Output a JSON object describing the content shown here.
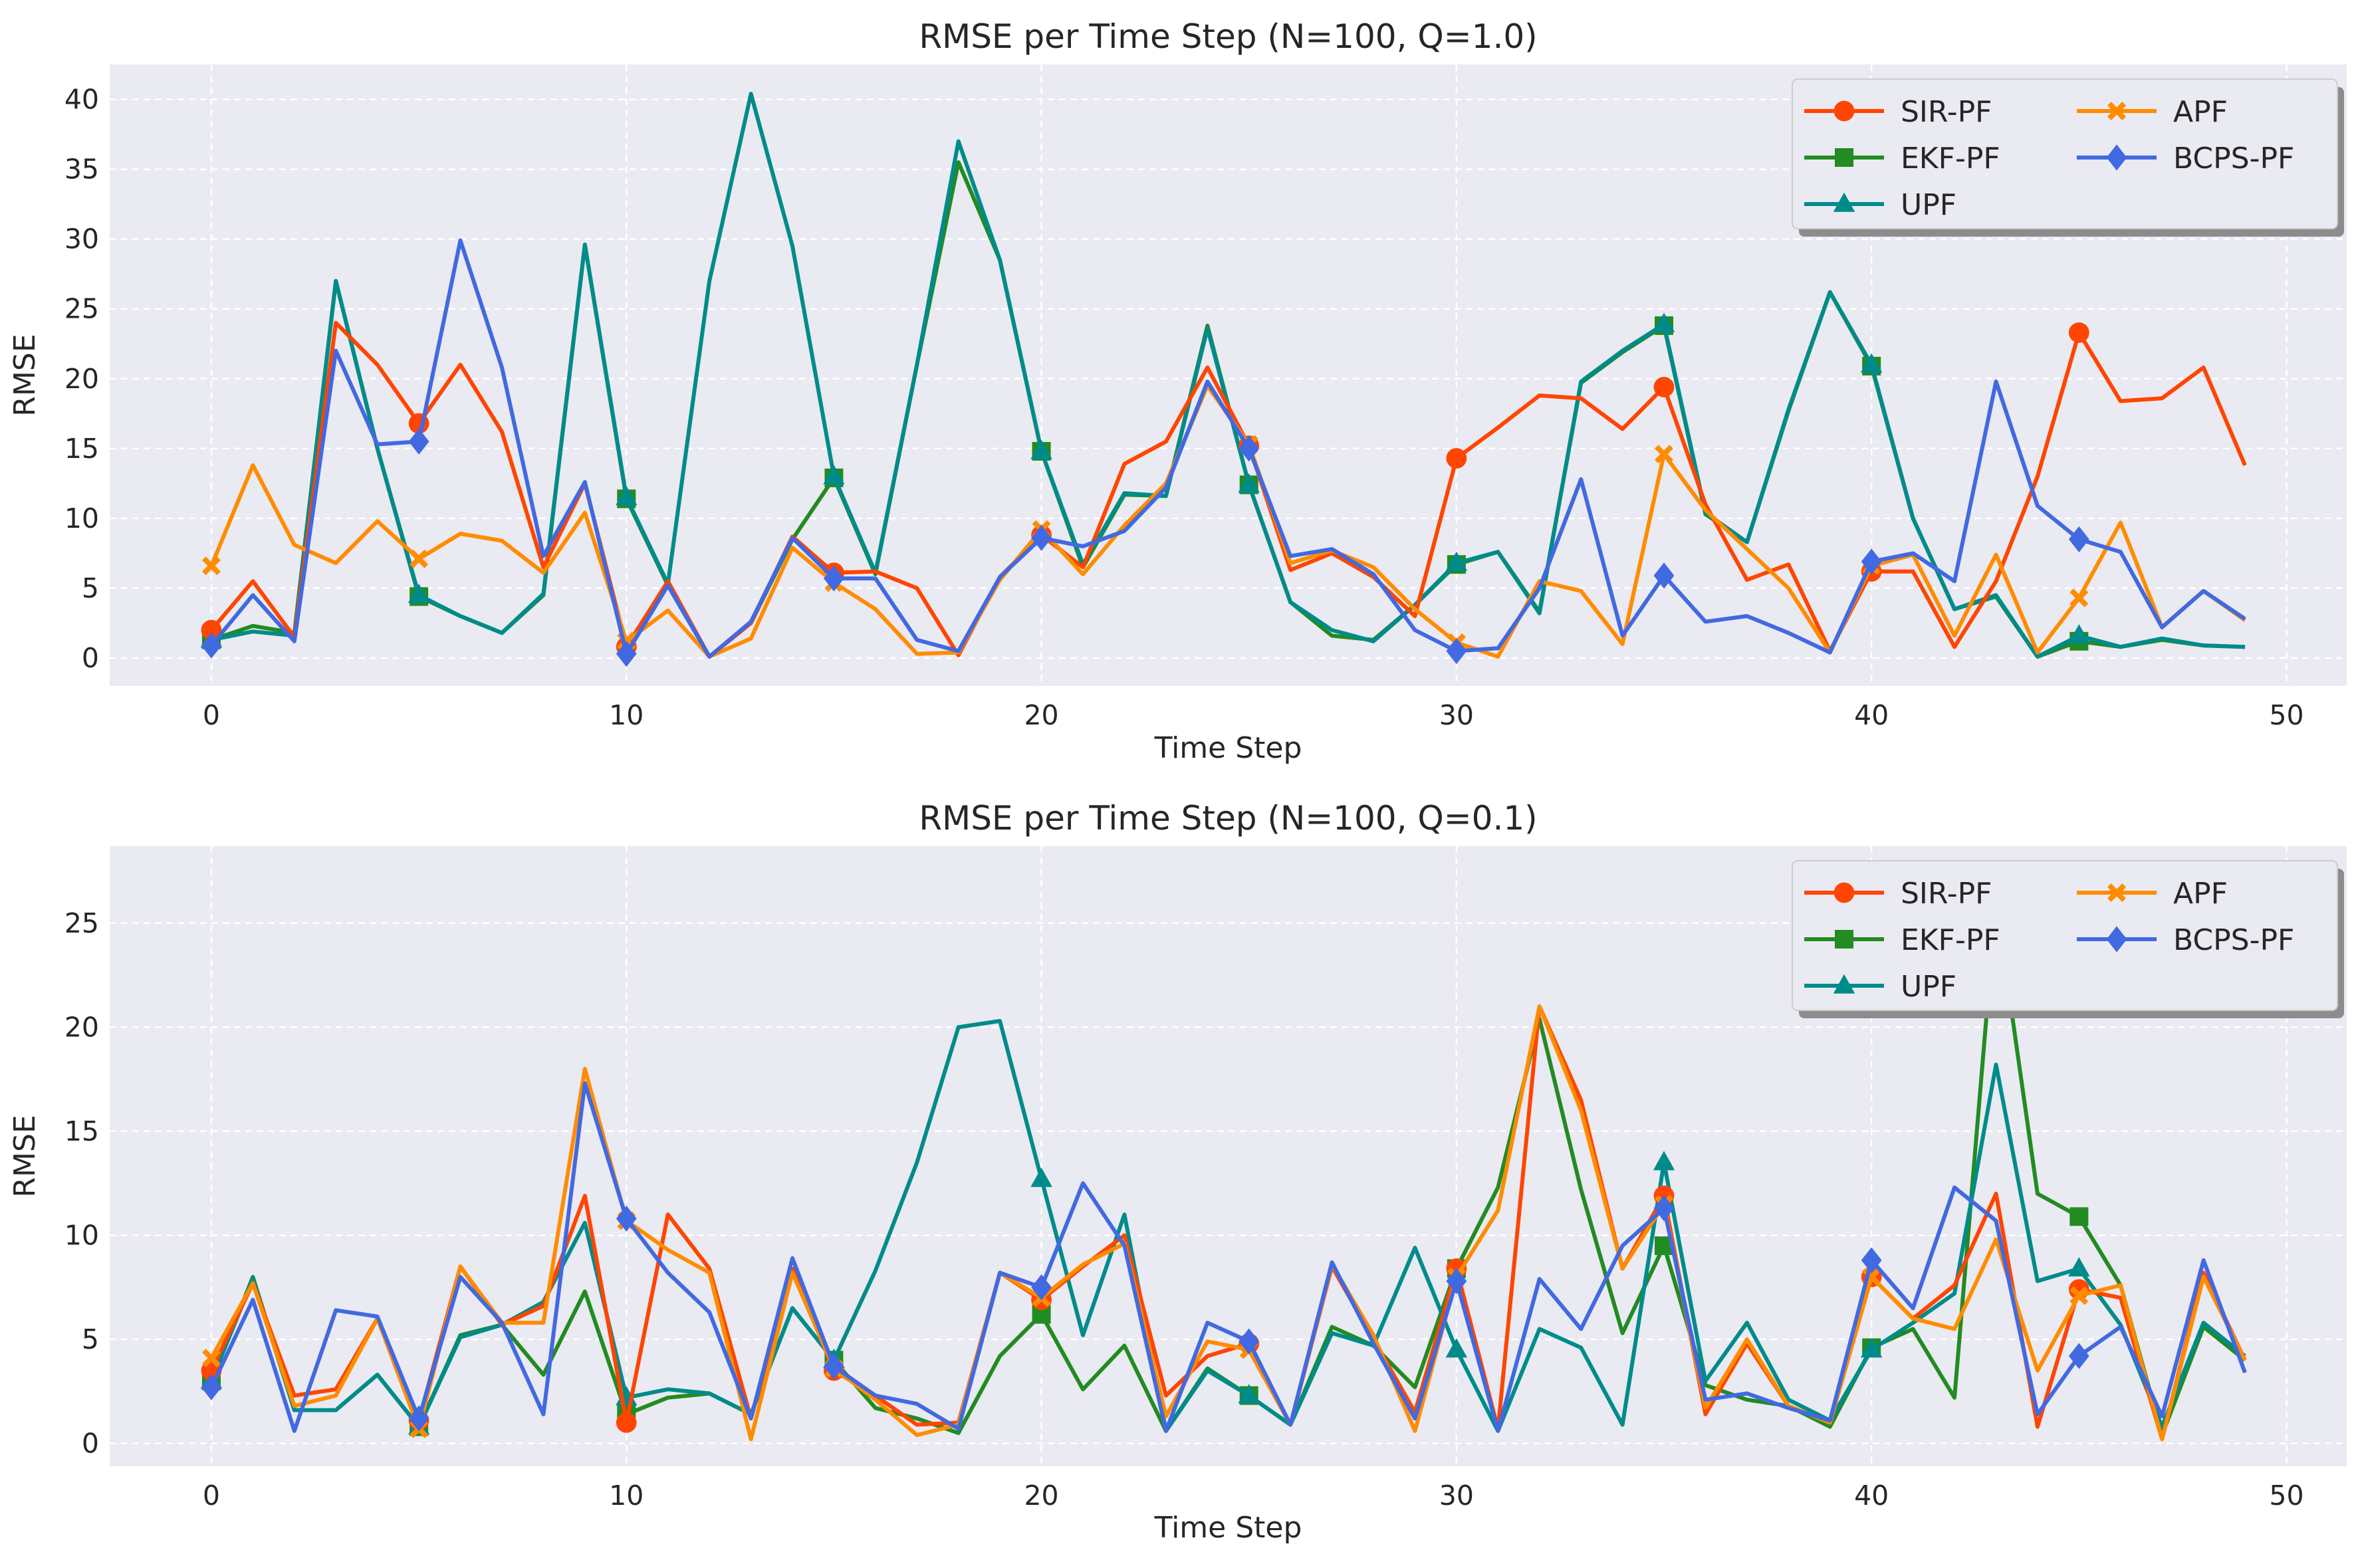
{
  "chart_data": [
    {
      "type": "line",
      "title": "RMSE per Time Step (N=100, Q=1.0)",
      "xlabel": "Time Step",
      "ylabel": "RMSE",
      "xlim": [
        -2.45,
        51.45
      ],
      "ylim": [
        -2.0,
        42.5
      ],
      "xticks": [
        "0",
        "10",
        "20",
        "30",
        "40",
        "50"
      ],
      "yticks": [
        "0",
        "5",
        "10",
        "15",
        "20",
        "25",
        "30",
        "35",
        "40"
      ],
      "grid": true,
      "legend": "top-right",
      "x": [
        0,
        1,
        2,
        3,
        4,
        5,
        6,
        7,
        8,
        9,
        10,
        11,
        12,
        13,
        14,
        15,
        16,
        17,
        18,
        19,
        20,
        21,
        22,
        23,
        24,
        25,
        26,
        27,
        28,
        29,
        30,
        31,
        32,
        33,
        34,
        35,
        36,
        37,
        38,
        39,
        40,
        41,
        42,
        43,
        44,
        45,
        46,
        47,
        48,
        49
      ],
      "series": [
        {
          "name": "SIR-PF",
          "values": [
            2.0,
            5.5,
            1.5,
            24.0,
            21.0,
            16.8,
            21.0,
            16.2,
            6.5,
            12.5,
            0.8,
            5.5,
            0.1,
            2.5,
            8.7,
            6.1,
            6.2,
            5.0,
            0.2,
            5.8,
            8.8,
            6.5,
            13.9,
            15.5,
            20.8,
            15.2,
            6.3,
            7.5,
            5.8,
            3.0,
            14.3,
            16.5,
            18.8,
            18.6,
            16.4,
            19.4,
            11.0,
            5.6,
            6.7,
            0.5,
            6.2,
            6.2,
            0.8,
            5.5,
            13.0,
            23.3,
            18.4,
            18.6,
            20.8,
            13.8
          ]
        },
        {
          "name": "EKF-PF",
          "values": [
            1.3,
            2.3,
            1.8,
            27.0,
            15.0,
            4.4,
            3.0,
            1.8,
            4.5,
            29.6,
            11.4,
            5.2,
            0.1,
            2.5,
            8.5,
            12.9,
            6.0,
            21.0,
            35.5,
            28.5,
            14.8,
            6.5,
            11.7,
            11.6,
            23.8,
            12.4,
            4.0,
            1.6,
            1.3,
            3.8,
            6.7,
            7.6,
            3.3,
            19.7,
            21.9,
            23.8,
            10.3,
            8.3,
            17.7,
            26.2,
            20.9,
            10.0,
            3.5,
            4.4,
            0.1,
            1.2,
            0.8,
            1.3,
            0.9,
            0.8
          ]
        },
        {
          "name": "UPF",
          "values": [
            1.3,
            1.9,
            1.6,
            27.0,
            15.0,
            4.5,
            3.0,
            1.8,
            4.6,
            29.6,
            11.5,
            5.3,
            27.0,
            40.4,
            29.5,
            13.0,
            6.1,
            21.0,
            37.0,
            28.5,
            14.8,
            6.7,
            11.8,
            11.6,
            23.6,
            12.4,
            4.0,
            2.0,
            1.2,
            3.8,
            6.8,
            7.6,
            3.2,
            19.8,
            22.0,
            23.9,
            10.4,
            8.3,
            17.8,
            26.2,
            21.0,
            10.0,
            3.5,
            4.5,
            0.1,
            1.6,
            0.8,
            1.4,
            0.9,
            0.8
          ]
        },
        {
          "name": "APF",
          "values": [
            6.6,
            13.8,
            8.1,
            6.8,
            9.8,
            7.1,
            8.9,
            8.4,
            6.1,
            10.4,
            1.2,
            3.4,
            0.1,
            1.4,
            7.9,
            5.4,
            3.5,
            0.3,
            0.4,
            5.6,
            9.2,
            6.0,
            9.5,
            12.5,
            19.5,
            15.3,
            6.8,
            7.7,
            6.5,
            3.5,
            1.1,
            0.1,
            5.5,
            4.8,
            1.0,
            14.6,
            10.6,
            7.8,
            5.0,
            0.4,
            6.6,
            7.4,
            1.6,
            7.4,
            0.4,
            4.3,
            9.7,
            2.2,
            4.8,
            2.7
          ]
        },
        {
          "name": "BCPS-PF",
          "values": [
            0.9,
            4.5,
            1.2,
            22.0,
            15.3,
            15.5,
            29.9,
            20.8,
            7.3,
            12.6,
            0.3,
            5.2,
            0.1,
            2.6,
            8.6,
            5.7,
            5.7,
            1.3,
            0.5,
            5.8,
            8.6,
            8.0,
            9.1,
            12.2,
            19.8,
            15.0,
            7.3,
            7.8,
            6.0,
            2.0,
            0.5,
            0.7,
            5.0,
            12.8,
            1.6,
            5.9,
            2.6,
            3.0,
            1.8,
            0.4,
            6.9,
            7.5,
            5.5,
            19.8,
            10.9,
            8.5,
            7.6,
            2.2,
            4.8,
            2.8
          ]
        }
      ]
    },
    {
      "type": "line",
      "title": "RMSE per Time Step (N=100, Q=0.1)",
      "xlabel": "Time Step",
      "ylabel": "RMSE",
      "xlim": [
        -2.45,
        51.45
      ],
      "ylim": [
        -1.1,
        28.7
      ],
      "xticks": [
        "0",
        "10",
        "20",
        "30",
        "40",
        "50"
      ],
      "yticks": [
        "0",
        "5",
        "10",
        "15",
        "20",
        "25"
      ],
      "grid": true,
      "legend": "top-right",
      "x": [
        0,
        1,
        2,
        3,
        4,
        5,
        6,
        7,
        8,
        9,
        10,
        11,
        12,
        13,
        14,
        15,
        16,
        17,
        18,
        19,
        20,
        21,
        22,
        23,
        24,
        25,
        26,
        27,
        28,
        29,
        30,
        31,
        32,
        33,
        34,
        35,
        36,
        37,
        38,
        39,
        40,
        41,
        42,
        43,
        44,
        45,
        46,
        47,
        48,
        49
      ],
      "series": [
        {
          "name": "SIR-PF",
          "values": [
            3.5,
            7.7,
            2.3,
            2.6,
            6.0,
            1.1,
            8.5,
            5.7,
            6.6,
            11.9,
            1.0,
            11.0,
            8.4,
            1.2,
            8.4,
            3.5,
            2.3,
            0.9,
            1.0,
            8.2,
            6.9,
            8.5,
            10.0,
            2.3,
            4.2,
            4.8,
            0.9,
            8.5,
            5.0,
            1.5,
            8.4,
            0.7,
            21.0,
            16.5,
            8.4,
            11.9,
            1.4,
            4.8,
            1.8,
            1.0,
            8.0,
            6.0,
            7.6,
            12.0,
            0.8,
            7.4,
            7.0,
            0.2,
            8.2,
            4.0
          ]
        },
        {
          "name": "EKF-PF",
          "values": [
            3.0,
            8.0,
            1.6,
            1.6,
            3.3,
            0.8,
            5.2,
            5.7,
            3.3,
            7.3,
            1.4,
            2.2,
            2.4,
            1.4,
            6.5,
            4.0,
            1.7,
            1.2,
            0.5,
            4.2,
            6.2,
            2.6,
            4.7,
            0.6,
            3.6,
            2.3,
            0.9,
            5.6,
            4.7,
            2.7,
            8.4,
            12.3,
            20.4,
            12.2,
            5.3,
            9.5,
            2.8,
            2.1,
            1.8,
            0.8,
            4.6,
            5.5,
            2.2,
            26.0,
            12.0,
            10.9,
            7.6,
            0.4,
            5.6,
            4.0
          ]
        },
        {
          "name": "UPF",
          "values": [
            3.0,
            7.9,
            1.6,
            1.6,
            3.3,
            0.8,
            5.1,
            5.7,
            6.8,
            10.6,
            2.2,
            2.6,
            2.4,
            1.4,
            6.5,
            4.0,
            8.3,
            13.5,
            20.0,
            20.3,
            12.7,
            5.2,
            11.0,
            0.6,
            3.5,
            2.3,
            0.9,
            5.3,
            4.7,
            9.4,
            4.5,
            0.6,
            5.5,
            4.6,
            0.9,
            13.5,
            3.0,
            5.8,
            2.1,
            1.1,
            4.5,
            5.8,
            7.2,
            18.2,
            7.8,
            8.4,
            5.7,
            0.8,
            5.8,
            4.2
          ]
        },
        {
          "name": "APF",
          "values": [
            4.1,
            7.7,
            1.8,
            2.3,
            6.0,
            0.7,
            8.5,
            5.8,
            5.8,
            18.0,
            10.7,
            9.3,
            8.2,
            0.2,
            8.2,
            3.6,
            2.1,
            0.4,
            0.9,
            8.2,
            7.0,
            8.6,
            9.6,
            1.3,
            4.9,
            4.5,
            0.9,
            8.6,
            5.2,
            0.6,
            8.0,
            11.2,
            21.0,
            16.0,
            8.4,
            11.5,
            1.7,
            5.0,
            1.8,
            1.0,
            8.0,
            6.0,
            5.5,
            9.8,
            3.5,
            7.1,
            7.6,
            0.2,
            8.0,
            4.0
          ]
        },
        {
          "name": "BCPS-PF",
          "values": [
            2.7,
            6.9,
            0.6,
            6.4,
            6.1,
            1.2,
            8.0,
            5.8,
            1.4,
            17.3,
            10.8,
            8.2,
            6.3,
            1.2,
            8.9,
            3.7,
            2.3,
            1.9,
            0.7,
            8.2,
            7.5,
            12.5,
            9.5,
            0.6,
            5.8,
            4.9,
            0.9,
            8.7,
            4.8,
            1.2,
            7.8,
            0.6,
            7.9,
            5.5,
            9.5,
            11.3,
            2.1,
            2.4,
            1.7,
            1.1,
            8.8,
            6.5,
            12.3,
            10.7,
            1.4,
            4.2,
            5.6,
            1.3,
            8.8,
            3.4
          ]
        }
      ]
    }
  ],
  "legend": {
    "entries": [
      {
        "name": "SIR-PF",
        "marker": "circle"
      },
      {
        "name": "EKF-PF",
        "marker": "square"
      },
      {
        "name": "UPF",
        "marker": "triangle"
      },
      {
        "name": "APF",
        "marker": "x"
      },
      {
        "name": "BCPS-PF",
        "marker": "diamond"
      }
    ]
  },
  "colors": {
    "SIR-PF": "#FF4500",
    "EKF-PF": "#228B22",
    "UPF": "#008B8B",
    "APF": "#FF8C00",
    "BCPS-PF": "#4169E1",
    "axes_background": "#EAEAF2",
    "grid": "#ffffff",
    "text": "#262626"
  },
  "series_order": [
    "EKF-PF",
    "UPF",
    "SIR-PF",
    "APF",
    "BCPS-PF"
  ]
}
